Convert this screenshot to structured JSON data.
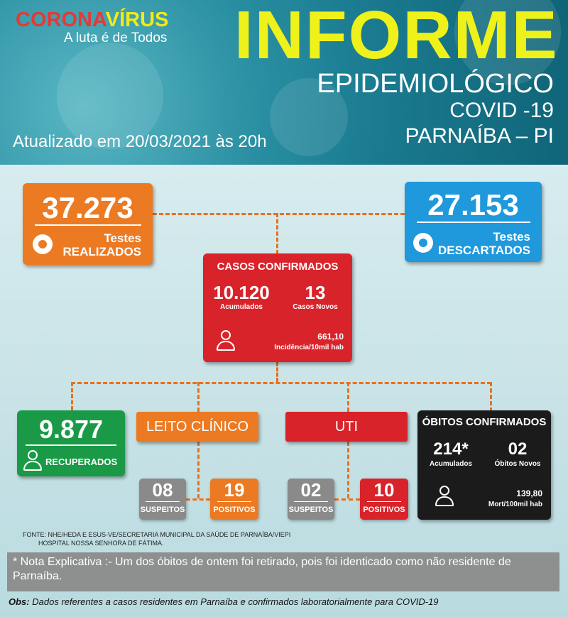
{
  "header": {
    "logo_part1": "CORONA",
    "logo_part2": "VÍRUS",
    "logo_subtitle": "A luta é de Todos",
    "title": "INFORME",
    "subtitle": "EPIDEMIOLÓGICO",
    "disease": "COVID -19",
    "location": "PARNAÍBA – PI",
    "updated": "Atualizado em 20/03/2021 às 20h"
  },
  "testes_realizados": {
    "value": "37.273",
    "label_line1": "Testes",
    "label_line2": "REALIZADOS"
  },
  "testes_descartados": {
    "value": "27.153",
    "label_line1": "Testes",
    "label_line2": "DESCARTADOS"
  },
  "casos_confirmados": {
    "title": "CASOS CONFIRMADOS",
    "acumulados_value": "10.120",
    "acumulados_label": "Acumulados",
    "novos_value": "13",
    "novos_label": "Casos Novos",
    "incidencia_value": "661,10",
    "incidencia_label": "Incidência/10mil hab"
  },
  "recuperados": {
    "value": "9.877",
    "label": "RECUPERADOS"
  },
  "leito_clinico": {
    "title": "LEITO CLÍNICO",
    "suspeitos_value": "08",
    "suspeitos_label": "SUSPEITOS",
    "positivos_value": "19",
    "positivos_label": "POSITIVOS"
  },
  "uti": {
    "title": "UTI",
    "suspeitos_value": "02",
    "suspeitos_label": "SUSPEITOS",
    "positivos_value": "10",
    "positivos_label": "POSITIVOS"
  },
  "obitos": {
    "title": "ÓBITOS CONFIRMADOS",
    "acumulados_value": "214*",
    "acumulados_label": "Acumulados",
    "novos_value": "02",
    "novos_label": "Óbitos Novos",
    "mort_value": "139,80",
    "mort_label": "Mort/100mil hab"
  },
  "source_line1": "FONTE: NHE/HEDA E ESUS-VE/SECRETARIA MUNICIPAL DA SAÚDE DE PARNAÍBA/VIEPI",
  "source_line2": "HOSPITAL NOSSA SENHORA DE FÁTIMA.",
  "nota": "* Nota Explicativa :- Um dos óbitos de ontem foi retirado, pois foi identicado como não residente de Parnaíba.",
  "obs_label": "Obs:",
  "obs_text": "Dados referentes a casos residentes em Parnaíba e confirmados laboratorialmente para COVID-19",
  "colors": {
    "orange": "#ec7a22",
    "blue": "#1f98dc",
    "red": "#d9232a",
    "green": "#1a9a47",
    "black": "#1b1b1b",
    "yellow": "#eef21a"
  }
}
